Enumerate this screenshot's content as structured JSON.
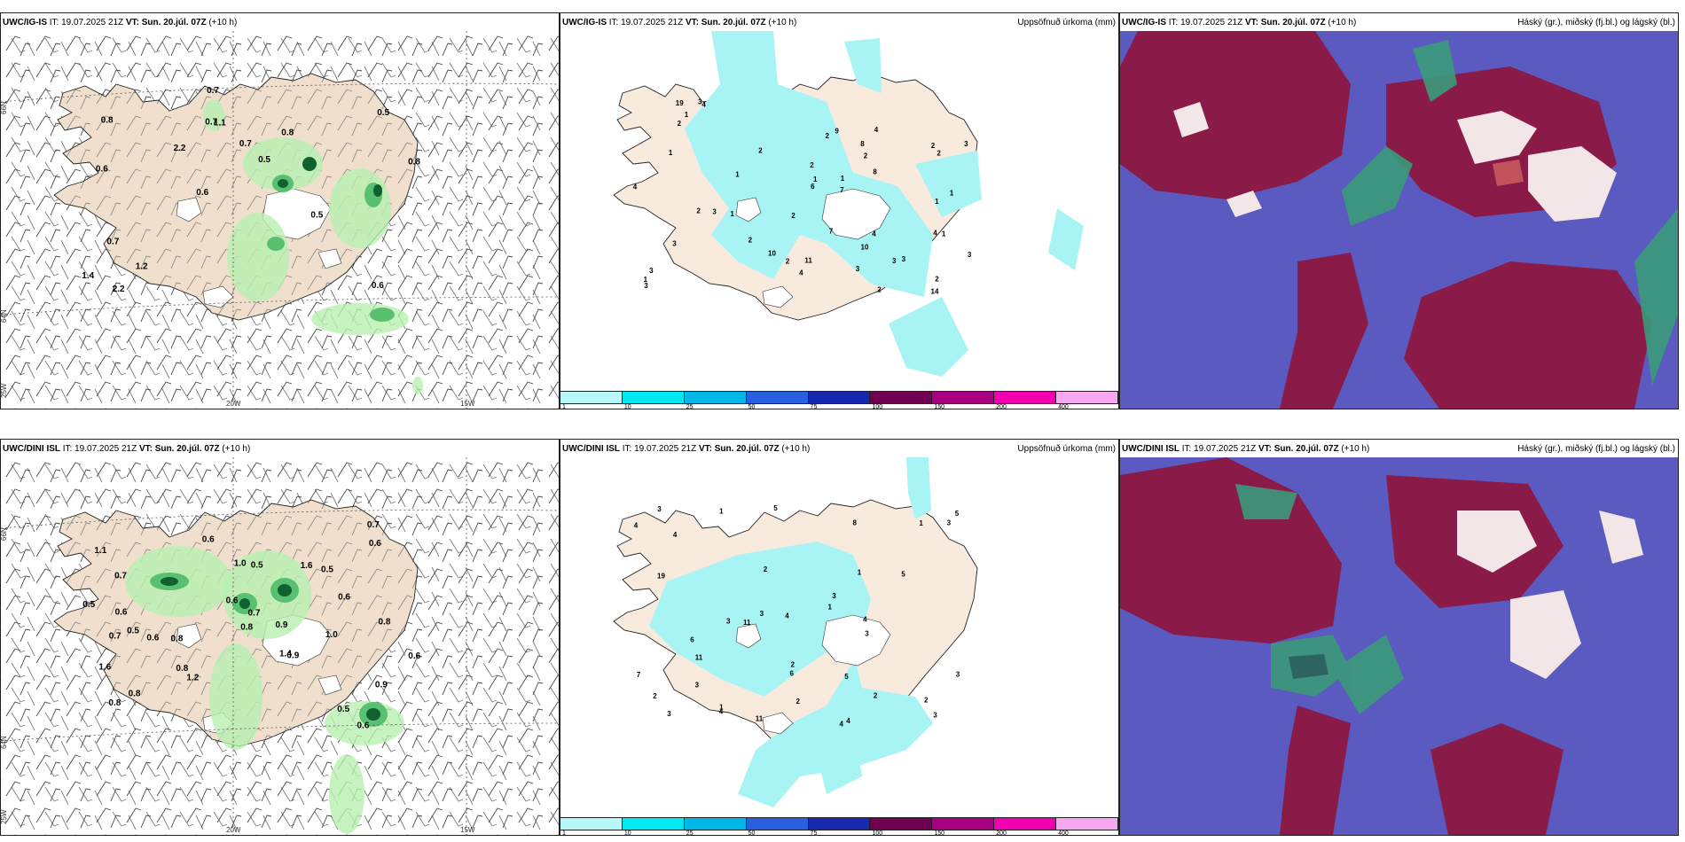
{
  "common": {
    "init_prefix": "IT:",
    "init_time": "19.07.2025 21Z",
    "valid_prefix": "VT:",
    "valid_time": "Sun. 20.júl. 07Z",
    "lead": "(+10 h)"
  },
  "rows": [
    {
      "model": "UWC/IG-IS"
    },
    {
      "model": "UWC/DINI ISL"
    }
  ],
  "titles": {
    "precip": "Uppsöfnuð úrkoma (mm)",
    "clouds": "Háský (gr.), miðský (fj.bl.) og lágský (bl.)"
  },
  "axis_labels": {
    "lat66": "66N",
    "lat64": "64N",
    "lon20": "20W",
    "lon15": "15W",
    "lon25": "25W"
  },
  "colorbar": {
    "labels": [
      "1",
      "10",
      "25",
      "50",
      "75",
      "100",
      "150",
      "200",
      "400"
    ],
    "colors": [
      "#b8f8f8",
      "#00e8f0",
      "#00b8e8",
      "#2860e0",
      "#1828b0",
      "#700050",
      "#a80080",
      "#f000b0",
      "#f8a8f0"
    ]
  },
  "colors": {
    "land": "#efdfcc",
    "land_precip": "#f8ebdd",
    "ice": "#ffffff",
    "precip": "#a8f4f4",
    "rain_light": "#b8f0b0",
    "rain_mid": "#58c070",
    "rain_dark": "#106030",
    "sky_blue": "#5a5ac0",
    "sky_high": "#8a1a48",
    "sky_mid": "#3a9a7a"
  },
  "wind_panels": [
    {
      "values": [
        "0.6",
        "0.6",
        "0.5",
        "0.6",
        "0.8",
        "2.2",
        "0.7",
        "0.7",
        "0.7",
        "2.2",
        "1.4",
        "1.2",
        "1.1",
        "0.5",
        "0.5",
        "0.8",
        "0.7",
        "0.8"
      ]
    },
    {
      "values": [
        "0.6",
        "0.5",
        "1.4",
        "1.1",
        "0.9",
        "0.7",
        "0.8",
        "0.8",
        "0.5",
        "1.0",
        "1.6",
        "0.5",
        "1.2",
        "0.6",
        "0.9",
        "1.6",
        "1.0",
        "0.7",
        "0.5",
        "0.8",
        "0.7",
        "0.5",
        "0.6",
        "0.6",
        "0.8",
        "0.6",
        "0.6",
        "0.8",
        "0.6",
        "0.6",
        "0.9",
        "0.7",
        "0.8"
      ]
    }
  ],
  "precip_panels": [
    {
      "values": [
        "3",
        "1",
        "4",
        "3",
        "9",
        "3",
        "2",
        "2",
        "1",
        "3",
        "4",
        "7",
        "1",
        "4",
        "19",
        "10",
        "14",
        "2",
        "2",
        "4",
        "2",
        "4",
        "1",
        "2",
        "3",
        "4",
        "3",
        "3",
        "2",
        "8",
        "2",
        "1",
        "1",
        "2",
        "3",
        "2",
        "2",
        "2",
        "1",
        "1",
        "8",
        "7",
        "6",
        "3",
        "1",
        "1",
        "2",
        "11",
        "10",
        "3"
      ]
    },
    {
      "values": [
        "11",
        "4",
        "1",
        "2",
        "1",
        "4",
        "3",
        "3",
        "5",
        "2",
        "1",
        "2",
        "3",
        "6",
        "8",
        "1",
        "19",
        "4",
        "11",
        "4",
        "5",
        "5",
        "3",
        "3",
        "5",
        "6",
        "7",
        "11",
        "3",
        "3",
        "4",
        "4",
        "2",
        "3",
        "3",
        "4",
        "3",
        "2",
        "1",
        "2"
      ]
    }
  ]
}
